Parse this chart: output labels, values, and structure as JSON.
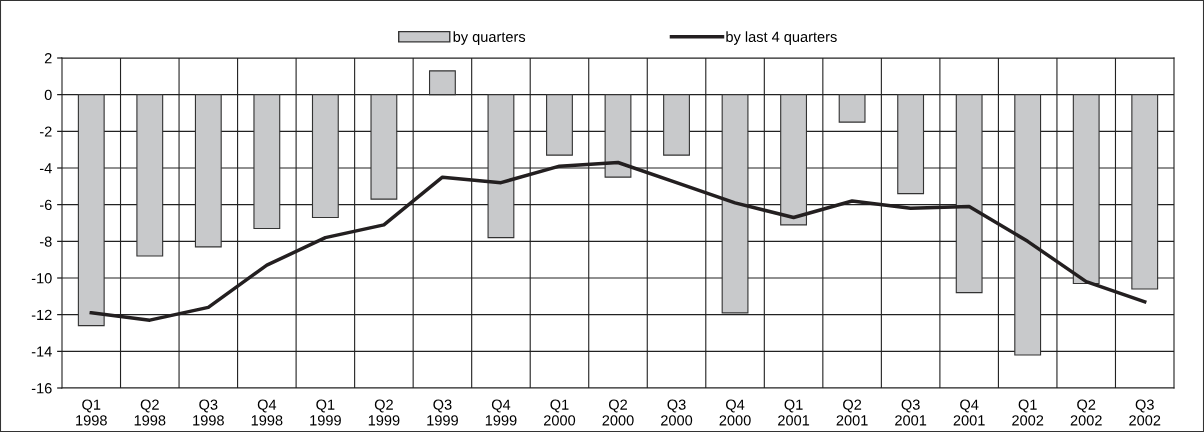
{
  "chart_data": {
    "type": "bar",
    "categories": [
      "Q1\n1998",
      "Q2\n1998",
      "Q3\n1998",
      "Q4\n1998",
      "Q1\n1999",
      "Q2\n1999",
      "Q3\n1999",
      "Q4\n1999",
      "Q1\n2000",
      "Q2\n2000",
      "Q3\n2000",
      "Q4\n2000",
      "Q1\n2001",
      "Q2\n2001",
      "Q3\n2001",
      "Q4\n2001",
      "Q1\n2002",
      "Q2\n2002",
      "Q3\n2002"
    ],
    "series": [
      {
        "name": "by quarters",
        "color": "#c8c9cb",
        "values": [
          -12.6,
          -8.8,
          -8.3,
          -7.3,
          -6.7,
          -5.7,
          1.3,
          -7.8,
          -3.3,
          -4.5,
          -3.3,
          -11.9,
          -7.1,
          -1.5,
          -5.4,
          -10.8,
          -14.2,
          -10.3,
          -10.6
        ]
      },
      {
        "name": "by last 4 quarters",
        "type": "line",
        "color": "#231f20",
        "values": [
          -11.9,
          -12.3,
          -11.6,
          -9.3,
          -7.8,
          -7.1,
          -4.5,
          -4.8,
          -3.9,
          -3.7,
          -4.8,
          -5.9,
          -6.7,
          -5.8,
          -6.2,
          -6.1,
          -8.0,
          -10.2,
          -11.3
        ]
      }
    ],
    "ylim": [
      -16,
      2
    ],
    "yticks": [
      -16,
      -14,
      -12,
      -10,
      -8,
      -6,
      -4,
      -2,
      0,
      2
    ],
    "grid": true,
    "legend": "top",
    "marker": "none",
    "line_style": "solid"
  }
}
